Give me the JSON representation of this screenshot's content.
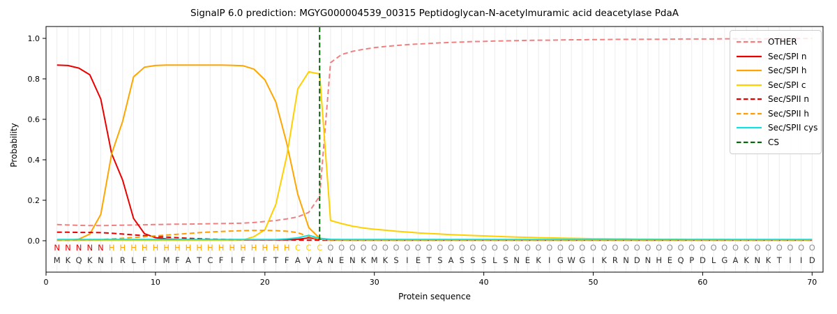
{
  "figure": {
    "title": "SignalP 6.0 prediction: MGYG000004539_00315 Peptidoglycan-N-acetylmuramic acid deacetylase PdaA",
    "xlabel": "Protein sequence",
    "ylabel": "Probability"
  },
  "colors": {
    "grid": "#ececec",
    "axis": "#000000",
    "sequence_letters": "#2b2b2b",
    "cs_line": "#0b640b"
  },
  "legend": {
    "items": [
      {
        "label": "OTHER",
        "color": "#f08080",
        "dash": "dashed"
      },
      {
        "label": "Sec/SPI n",
        "color": "#eb0000",
        "dash": "solid"
      },
      {
        "label": "Sec/SPI h",
        "color": "#ffa500",
        "dash": "solid"
      },
      {
        "label": "Sec/SPI c",
        "color": "#ffd000",
        "dash": "solid"
      },
      {
        "label": "Sec/SPII n",
        "color": "#e30000",
        "dash": "dashed"
      },
      {
        "label": "Sec/SPII h",
        "color": "#ff9d00",
        "dash": "dashed"
      },
      {
        "label": "Sec/SPII cys",
        "color": "#10e0e0",
        "dash": "solid"
      },
      {
        "label": "CS",
        "color": "#0b640b",
        "dash": "dashed"
      }
    ]
  },
  "chart_data": {
    "type": "line",
    "title": "SignalP 6.0 prediction: MGYG000004539_00315 Peptidoglycan-N-acetylmuramic acid deacetylase PdaA",
    "xlabel": "Protein sequence",
    "ylabel": "Probability",
    "xlim": [
      0,
      71
    ],
    "ylim": [
      0.0,
      1.0
    ],
    "grid": "vertical gridline at every residue position",
    "legend_position": "upper right",
    "x_ticks": [
      0,
      10,
      20,
      30,
      40,
      50,
      60,
      70
    ],
    "x_tick_labels": [
      "0",
      "10",
      "20",
      "30",
      "40",
      "50",
      "60",
      "70"
    ],
    "y_ticks": [
      0.0,
      0.2,
      0.4,
      0.6,
      0.8,
      1.0
    ],
    "y_tick_labels": [
      "0.0",
      "0.2",
      "0.4",
      "0.6",
      "0.8",
      "1.0"
    ],
    "x_positions": "residues 1-70, one value per residue",
    "sequence": "MKQKNIRLFIMFATCFIFIFTFAVANENKMKSIETSASSSLSNEKIGWGIKRNDNHEQPDLGAKNKTIID",
    "region_annotation": "NNNNNHHHHHHHHHHHHHHHHHCCCOOOOOOOOOOOOOOOOOOOOOOOOOOOOOOOOOOOOOOOOOOOOO",
    "annotation_colors": {
      "N": "#eb0000",
      "H": "#ffa500",
      "C": "#ffd000",
      "O": "#8f8f8f"
    },
    "cs_line": {
      "label": "CS",
      "position": 25,
      "color": "#0b640b",
      "style": "dashed"
    },
    "series": [
      {
        "name": "OTHER",
        "color": "#f08080",
        "style": "dashed",
        "values": [
          0.08,
          0.078,
          0.076,
          0.075,
          0.075,
          0.076,
          0.077,
          0.078,
          0.079,
          0.08,
          0.081,
          0.082,
          0.082,
          0.083,
          0.084,
          0.085,
          0.086,
          0.087,
          0.09,
          0.095,
          0.1,
          0.108,
          0.118,
          0.14,
          0.22,
          0.88,
          0.92,
          0.936,
          0.946,
          0.954,
          0.96,
          0.965,
          0.969,
          0.972,
          0.975,
          0.978,
          0.98,
          0.982,
          0.984,
          0.985,
          0.987,
          0.988,
          0.989,
          0.99,
          0.991,
          0.991,
          0.992,
          0.993,
          0.993,
          0.994,
          0.994,
          0.995,
          0.995,
          0.995,
          0.996,
          0.996,
          0.996,
          0.997,
          0.997,
          0.997,
          0.997,
          0.998,
          0.998,
          0.998,
          0.998,
          0.998,
          0.998,
          0.999,
          0.999,
          0.999
        ]
      },
      {
        "name": "Sec/SPI n",
        "color": "#eb0000",
        "style": "solid",
        "values": [
          0.868,
          0.866,
          0.853,
          0.82,
          0.7,
          0.43,
          0.3,
          0.11,
          0.035,
          0.015,
          0.009,
          0.006,
          0.005,
          0.005,
          0.004,
          0.004,
          0.004,
          0.004,
          0.004,
          0.004,
          0.004,
          0.005,
          0.007,
          0.014,
          0.008,
          0.004,
          0.003,
          0.003,
          0.003,
          0.003,
          0.003,
          0.003,
          0.003,
          0.003,
          0.003,
          0.003,
          0.003,
          0.003,
          0.003,
          0.003,
          0.003,
          0.003,
          0.003,
          0.003,
          0.003,
          0.003,
          0.003,
          0.003,
          0.003,
          0.003,
          0.003,
          0.003,
          0.003,
          0.003,
          0.003,
          0.003,
          0.003,
          0.003,
          0.003,
          0.003,
          0.003,
          0.003,
          0.003,
          0.003,
          0.003,
          0.003,
          0.003,
          0.003,
          0.003,
          0.003
        ]
      },
      {
        "name": "Sec/SPI h",
        "color": "#ffa500",
        "style": "solid",
        "values": [
          0.002,
          0.003,
          0.008,
          0.033,
          0.13,
          0.43,
          0.59,
          0.81,
          0.858,
          0.866,
          0.868,
          0.868,
          0.868,
          0.868,
          0.868,
          0.868,
          0.867,
          0.865,
          0.848,
          0.795,
          0.685,
          0.48,
          0.23,
          0.065,
          0.012,
          0.005,
          0.004,
          0.003,
          0.003,
          0.003,
          0.003,
          0.003,
          0.003,
          0.003,
          0.003,
          0.003,
          0.003,
          0.003,
          0.003,
          0.003,
          0.003,
          0.003,
          0.003,
          0.003,
          0.003,
          0.003,
          0.003,
          0.003,
          0.003,
          0.003,
          0.003,
          0.003,
          0.003,
          0.003,
          0.003,
          0.003,
          0.003,
          0.003,
          0.003,
          0.003,
          0.003,
          0.003,
          0.003,
          0.003,
          0.003,
          0.003,
          0.003,
          0.003,
          0.003,
          0.003
        ]
      },
      {
        "name": "Sec/SPI c",
        "color": "#ffd000",
        "style": "solid",
        "values": [
          0.002,
          0.002,
          0.002,
          0.002,
          0.002,
          0.002,
          0.002,
          0.002,
          0.002,
          0.002,
          0.002,
          0.002,
          0.002,
          0.002,
          0.002,
          0.002,
          0.002,
          0.004,
          0.02,
          0.055,
          0.18,
          0.42,
          0.75,
          0.835,
          0.824,
          0.1,
          0.085,
          0.072,
          0.063,
          0.057,
          0.052,
          0.047,
          0.043,
          0.039,
          0.036,
          0.033,
          0.03,
          0.028,
          0.026,
          0.024,
          0.022,
          0.02,
          0.018,
          0.017,
          0.015,
          0.014,
          0.013,
          0.012,
          0.011,
          0.01,
          0.01,
          0.009,
          0.009,
          0.008,
          0.008,
          0.007,
          0.007,
          0.007,
          0.006,
          0.006,
          0.006,
          0.006,
          0.005,
          0.005,
          0.005,
          0.005,
          0.005,
          0.005,
          0.005,
          0.005
        ]
      },
      {
        "name": "Sec/SPII n",
        "color": "#e30000",
        "style": "dashed",
        "values": [
          0.042,
          0.042,
          0.041,
          0.041,
          0.04,
          0.037,
          0.033,
          0.029,
          0.025,
          0.021,
          0.018,
          0.015,
          0.012,
          0.01,
          0.008,
          0.007,
          0.006,
          0.005,
          0.005,
          0.004,
          0.004,
          0.004,
          0.003,
          0.003,
          0.003,
          0.003,
          0.003,
          0.003,
          0.003,
          0.003,
          0.003,
          0.003,
          0.003,
          0.003,
          0.003,
          0.003,
          0.003,
          0.003,
          0.003,
          0.003,
          0.003,
          0.003,
          0.003,
          0.003,
          0.003,
          0.003,
          0.003,
          0.003,
          0.003,
          0.003,
          0.003,
          0.003,
          0.003,
          0.003,
          0.003,
          0.003,
          0.003,
          0.003,
          0.003,
          0.003,
          0.003,
          0.003,
          0.003,
          0.003,
          0.003,
          0.003,
          0.003,
          0.003,
          0.003,
          0.003
        ]
      },
      {
        "name": "Sec/SPII h",
        "color": "#ff9d00",
        "style": "dashed",
        "values": [
          0.002,
          0.002,
          0.003,
          0.004,
          0.006,
          0.009,
          0.012,
          0.016,
          0.02,
          0.024,
          0.028,
          0.032,
          0.036,
          0.04,
          0.043,
          0.046,
          0.048,
          0.05,
          0.051,
          0.051,
          0.05,
          0.047,
          0.04,
          0.02,
          0.008,
          0.004,
          0.003,
          0.003,
          0.003,
          0.003,
          0.003,
          0.003,
          0.003,
          0.003,
          0.003,
          0.003,
          0.003,
          0.003,
          0.003,
          0.003,
          0.003,
          0.003,
          0.003,
          0.003,
          0.003,
          0.003,
          0.003,
          0.003,
          0.003,
          0.003,
          0.003,
          0.003,
          0.003,
          0.003,
          0.003,
          0.003,
          0.003,
          0.003,
          0.003,
          0.003,
          0.003,
          0.003,
          0.003,
          0.003,
          0.003,
          0.003,
          0.003,
          0.003,
          0.003,
          0.003
        ]
      },
      {
        "name": "Sec/SPII cys",
        "color": "#10e0e0",
        "style": "solid",
        "values": [
          0.006,
          0.006,
          0.006,
          0.006,
          0.006,
          0.006,
          0.006,
          0.006,
          0.006,
          0.006,
          0.006,
          0.006,
          0.006,
          0.006,
          0.006,
          0.006,
          0.006,
          0.006,
          0.006,
          0.006,
          0.006,
          0.009,
          0.014,
          0.027,
          0.012,
          0.007,
          0.006,
          0.006,
          0.006,
          0.006,
          0.006,
          0.006,
          0.006,
          0.006,
          0.006,
          0.006,
          0.006,
          0.006,
          0.006,
          0.006,
          0.006,
          0.006,
          0.006,
          0.006,
          0.006,
          0.006,
          0.006,
          0.006,
          0.006,
          0.006,
          0.006,
          0.006,
          0.006,
          0.006,
          0.006,
          0.006,
          0.006,
          0.006,
          0.006,
          0.006,
          0.006,
          0.006,
          0.006,
          0.006,
          0.006,
          0.006,
          0.006,
          0.006,
          0.006,
          0.006
        ]
      }
    ]
  }
}
